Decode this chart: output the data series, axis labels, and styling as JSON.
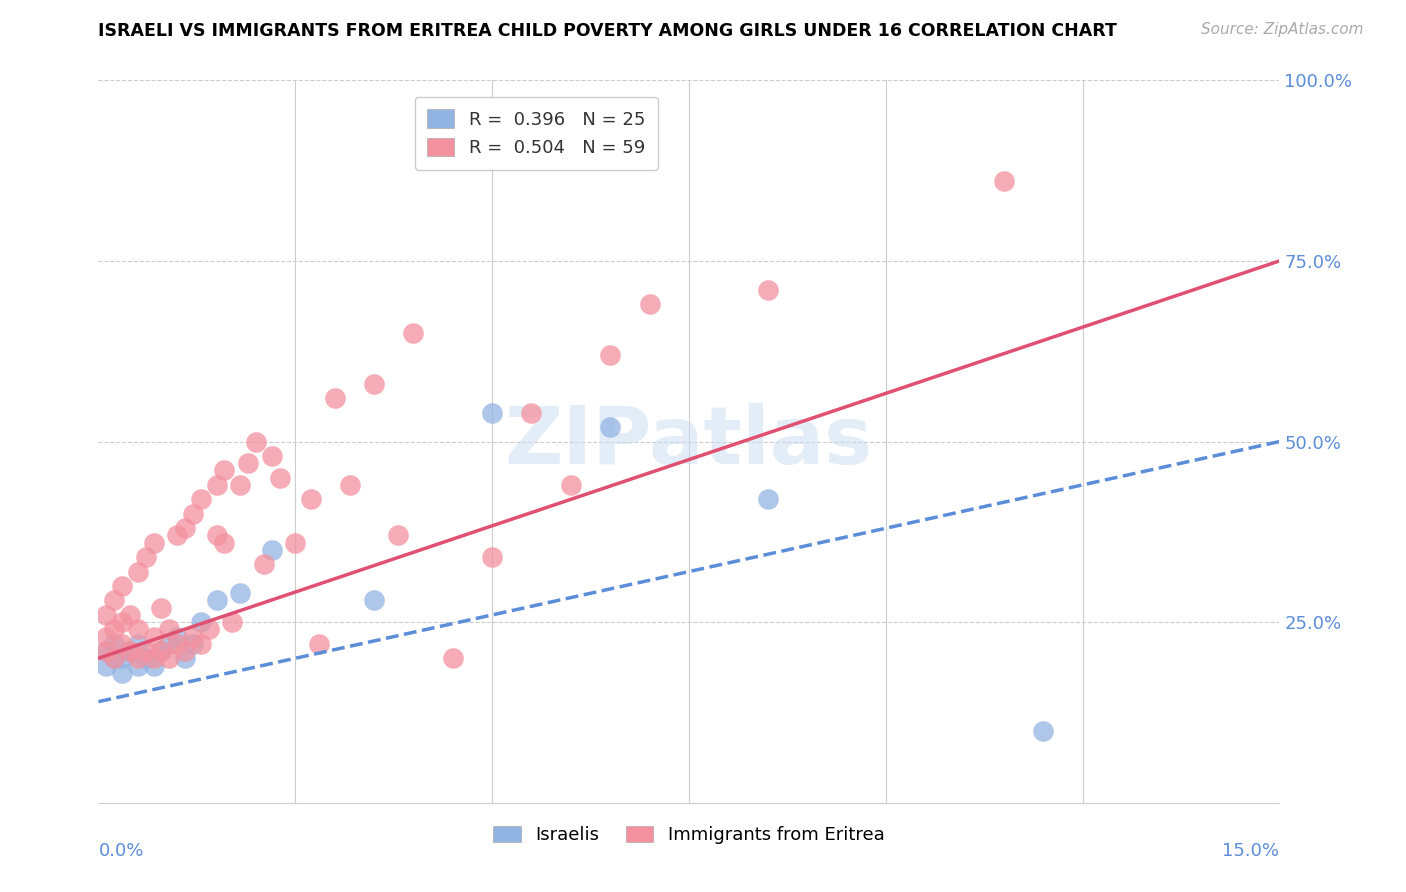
{
  "title": "ISRAELI VS IMMIGRANTS FROM ERITREA CHILD POVERTY AMONG GIRLS UNDER 16 CORRELATION CHART",
  "source": "Source: ZipAtlas.com",
  "ylabel": "Child Poverty Among Girls Under 16",
  "xlim": [
    0.0,
    0.15
  ],
  "ylim": [
    0.0,
    1.0
  ],
  "israelis_R": 0.396,
  "israelis_N": 25,
  "eritrea_R": 0.504,
  "eritrea_N": 59,
  "israelis_color": "#92b4e3",
  "eritrea_color": "#f4919e",
  "trend_israeli_color": "#5b8dd9",
  "trend_eritrea_color": "#e05070",
  "trend_isr_x0": 0.0,
  "trend_isr_y0": 0.14,
  "trend_isr_x1": 0.15,
  "trend_isr_y1": 0.5,
  "trend_eri_x0": 0.0,
  "trend_eri_y0": 0.2,
  "trend_eri_x1": 0.15,
  "trend_eri_y1": 0.75,
  "israelis_x": [
    0.001,
    0.001,
    0.002,
    0.002,
    0.003,
    0.003,
    0.004,
    0.005,
    0.005,
    0.006,
    0.007,
    0.008,
    0.009,
    0.01,
    0.011,
    0.012,
    0.013,
    0.015,
    0.018,
    0.022,
    0.035,
    0.05,
    0.065,
    0.085,
    0.12
  ],
  "israelis_y": [
    0.19,
    0.21,
    0.2,
    0.22,
    0.18,
    0.2,
    0.21,
    0.19,
    0.22,
    0.2,
    0.19,
    0.21,
    0.22,
    0.23,
    0.2,
    0.22,
    0.25,
    0.28,
    0.29,
    0.35,
    0.28,
    0.54,
    0.52,
    0.42,
    0.1
  ],
  "eritrea_x": [
    0.001,
    0.001,
    0.001,
    0.002,
    0.002,
    0.002,
    0.003,
    0.003,
    0.003,
    0.004,
    0.004,
    0.005,
    0.005,
    0.005,
    0.006,
    0.006,
    0.007,
    0.007,
    0.007,
    0.008,
    0.008,
    0.009,
    0.009,
    0.01,
    0.01,
    0.011,
    0.011,
    0.012,
    0.012,
    0.013,
    0.013,
    0.014,
    0.015,
    0.015,
    0.016,
    0.016,
    0.017,
    0.018,
    0.019,
    0.02,
    0.021,
    0.022,
    0.023,
    0.025,
    0.027,
    0.028,
    0.03,
    0.032,
    0.035,
    0.038,
    0.04,
    0.045,
    0.05,
    0.055,
    0.06,
    0.065,
    0.07,
    0.085,
    0.115
  ],
  "eritrea_y": [
    0.21,
    0.23,
    0.26,
    0.2,
    0.24,
    0.28,
    0.22,
    0.25,
    0.3,
    0.21,
    0.26,
    0.2,
    0.24,
    0.32,
    0.21,
    0.34,
    0.2,
    0.23,
    0.36,
    0.21,
    0.27,
    0.2,
    0.24,
    0.22,
    0.37,
    0.21,
    0.38,
    0.23,
    0.4,
    0.22,
    0.42,
    0.24,
    0.37,
    0.44,
    0.36,
    0.46,
    0.25,
    0.44,
    0.47,
    0.5,
    0.33,
    0.48,
    0.45,
    0.36,
    0.42,
    0.22,
    0.56,
    0.44,
    0.58,
    0.37,
    0.65,
    0.2,
    0.34,
    0.54,
    0.44,
    0.62,
    0.69,
    0.71,
    0.86
  ]
}
